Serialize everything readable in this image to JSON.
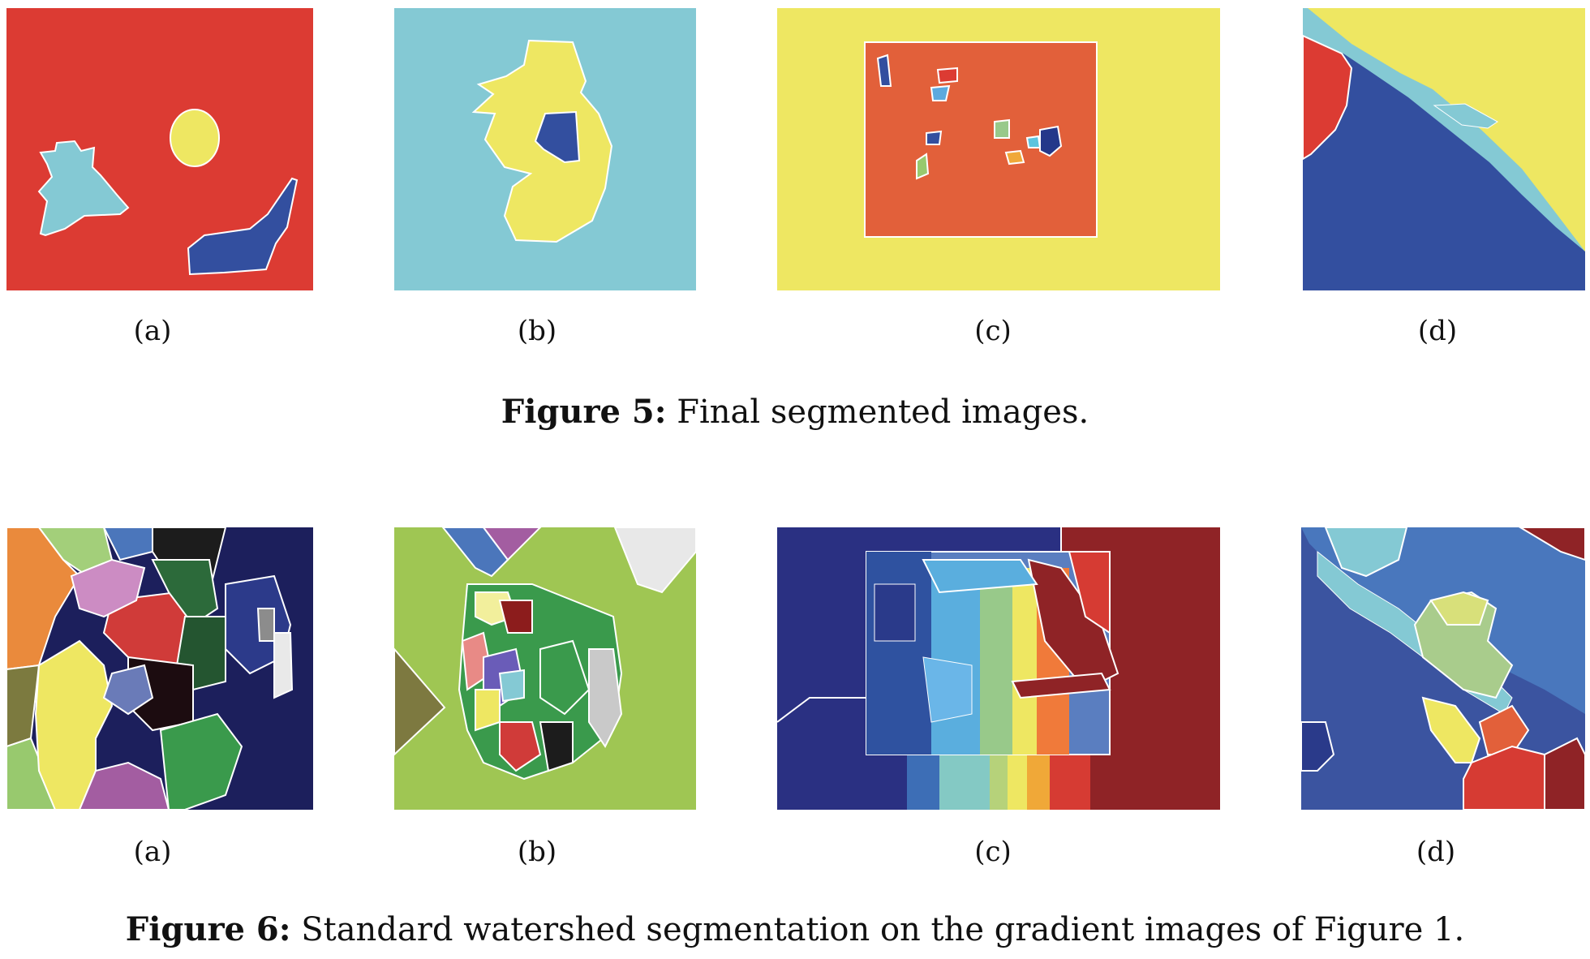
{
  "figure5": {
    "caption_label": "Figure 5:",
    "caption_text": " Final segmented images.",
    "subfigures": [
      "(a)",
      "(b)",
      "(c)",
      "(d)"
    ]
  },
  "figure6": {
    "caption_label": "Figure 6:",
    "caption_text": " Standard watershed segmentation on the gradient images of Figure 1.",
    "subfigures": [
      "(a)",
      "(b)",
      "(c)",
      "(d)"
    ]
  },
  "colors": {
    "red": "#dc3b33",
    "cyan": "#84c9d4",
    "yellow": "#eee762",
    "blue": "#334f9f",
    "orange": "#e2603a"
  }
}
